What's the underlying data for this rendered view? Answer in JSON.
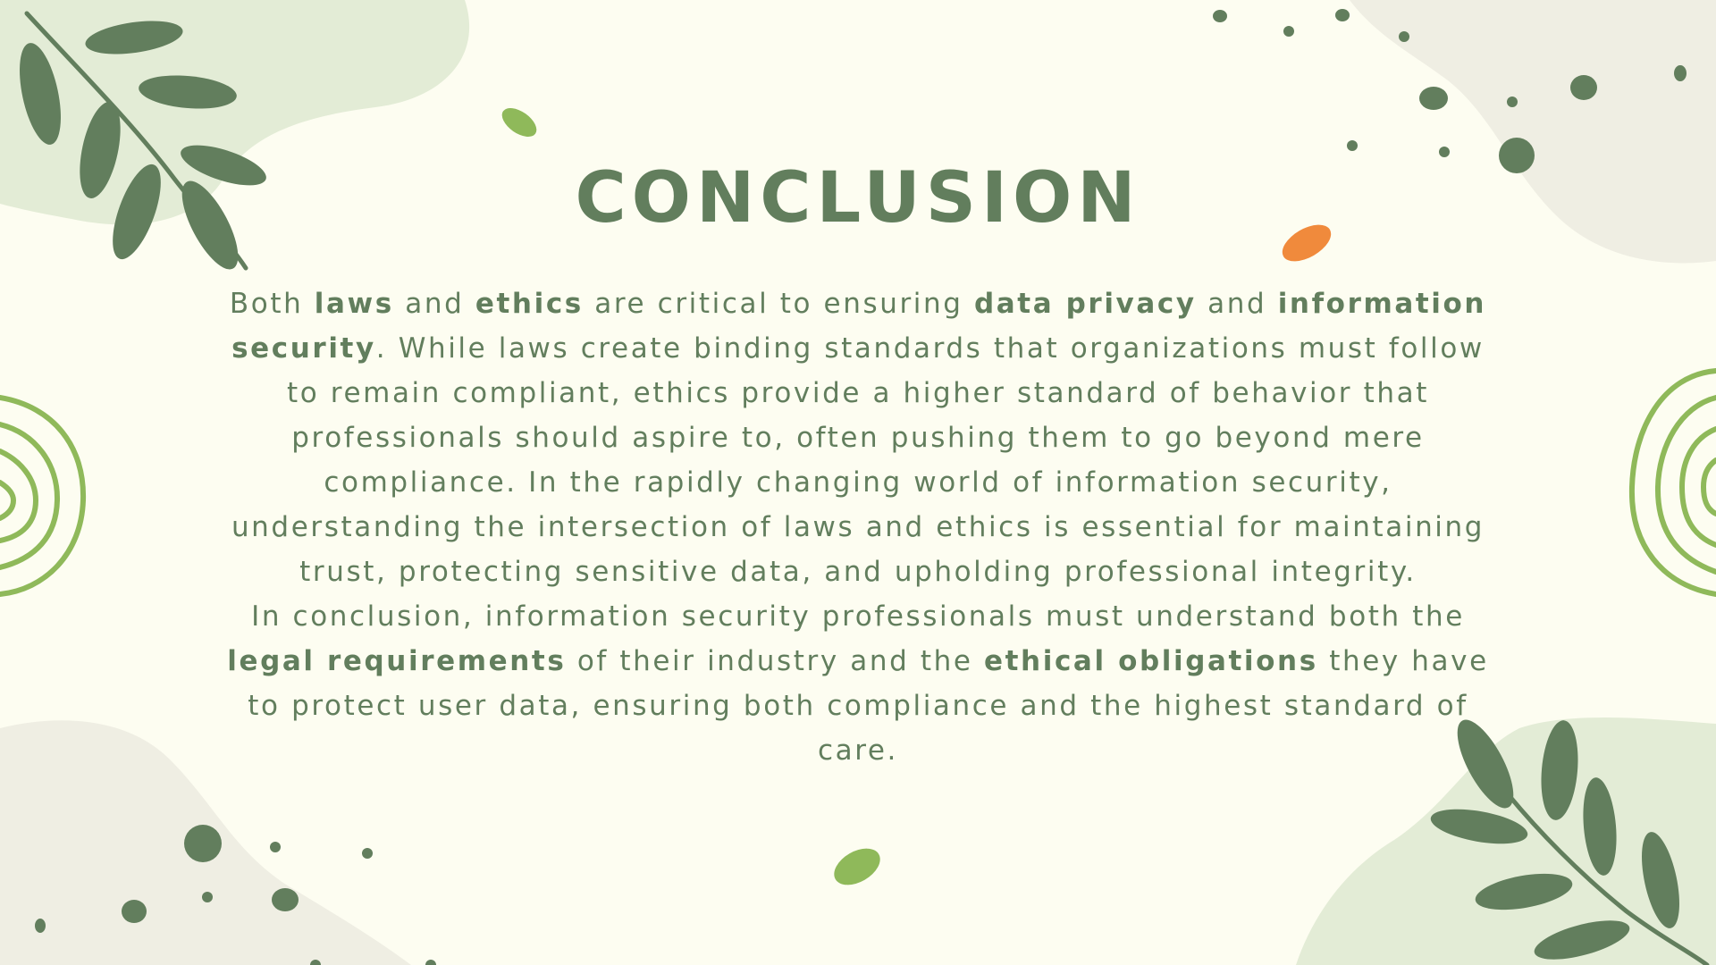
{
  "slide": {
    "title": "CONCLUSION",
    "paragraphs": [
      [
        {
          "text": "Both "
        },
        {
          "text": "laws",
          "bold": true
        },
        {
          "text": " and "
        },
        {
          "text": "ethics",
          "bold": true
        },
        {
          "text": " are critical to ensuring "
        },
        {
          "text": "data privacy",
          "bold": true
        },
        {
          "text": " and "
        },
        {
          "text": "information security",
          "bold": true
        },
        {
          "text": ". While laws create binding standards that organizations must follow to remain compliant, ethics provide a higher standard of behavior that professionals should aspire to, often pushing them to go beyond mere compliance. In the rapidly changing world of information security, understanding the intersection of laws and ethics is essential for maintaining trust, protecting sensitive data, and upholding professional integrity."
        }
      ],
      [
        {
          "text": "In conclusion, information security professionals must understand both the "
        },
        {
          "text": "legal requirements",
          "bold": true
        },
        {
          "text": " of their industry and the "
        },
        {
          "text": "ethical obligations",
          "bold": true
        },
        {
          "text": " they have to protect user data, ensuring both compliance and the highest standard of care."
        }
      ]
    ]
  },
  "theme": {
    "background": "#fdfdf1",
    "text_color": "#627e5d",
    "leaf_green": "#627e5d",
    "light_green": "#8fb95a",
    "blob_green": "#e3ecd6",
    "blob_beige": "#efeee3",
    "accent_orange": "#f08a3c"
  }
}
